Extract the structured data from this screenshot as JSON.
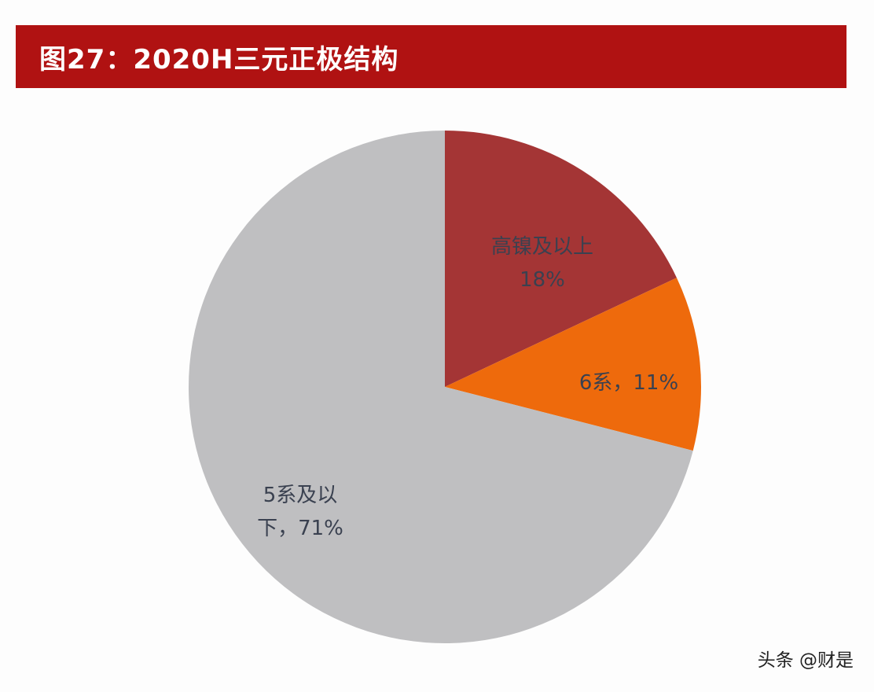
{
  "chart_data": {
    "type": "pie",
    "title": "图27：2020H三元正极结构",
    "slices": [
      {
        "label_lines": [
          "高镍及以上",
          "18%"
        ],
        "value": 18,
        "color": "#a43535"
      },
      {
        "label_lines": [
          "6系，11%"
        ],
        "value": 11,
        "color": "#ee6a0c"
      },
      {
        "label_lines": [
          "5系及以",
          "下，71%"
        ],
        "value": 71,
        "color": "#bfbfc1"
      }
    ],
    "start_angle_deg": 0,
    "direction": "clockwise"
  },
  "watermark": "头条 @财是"
}
